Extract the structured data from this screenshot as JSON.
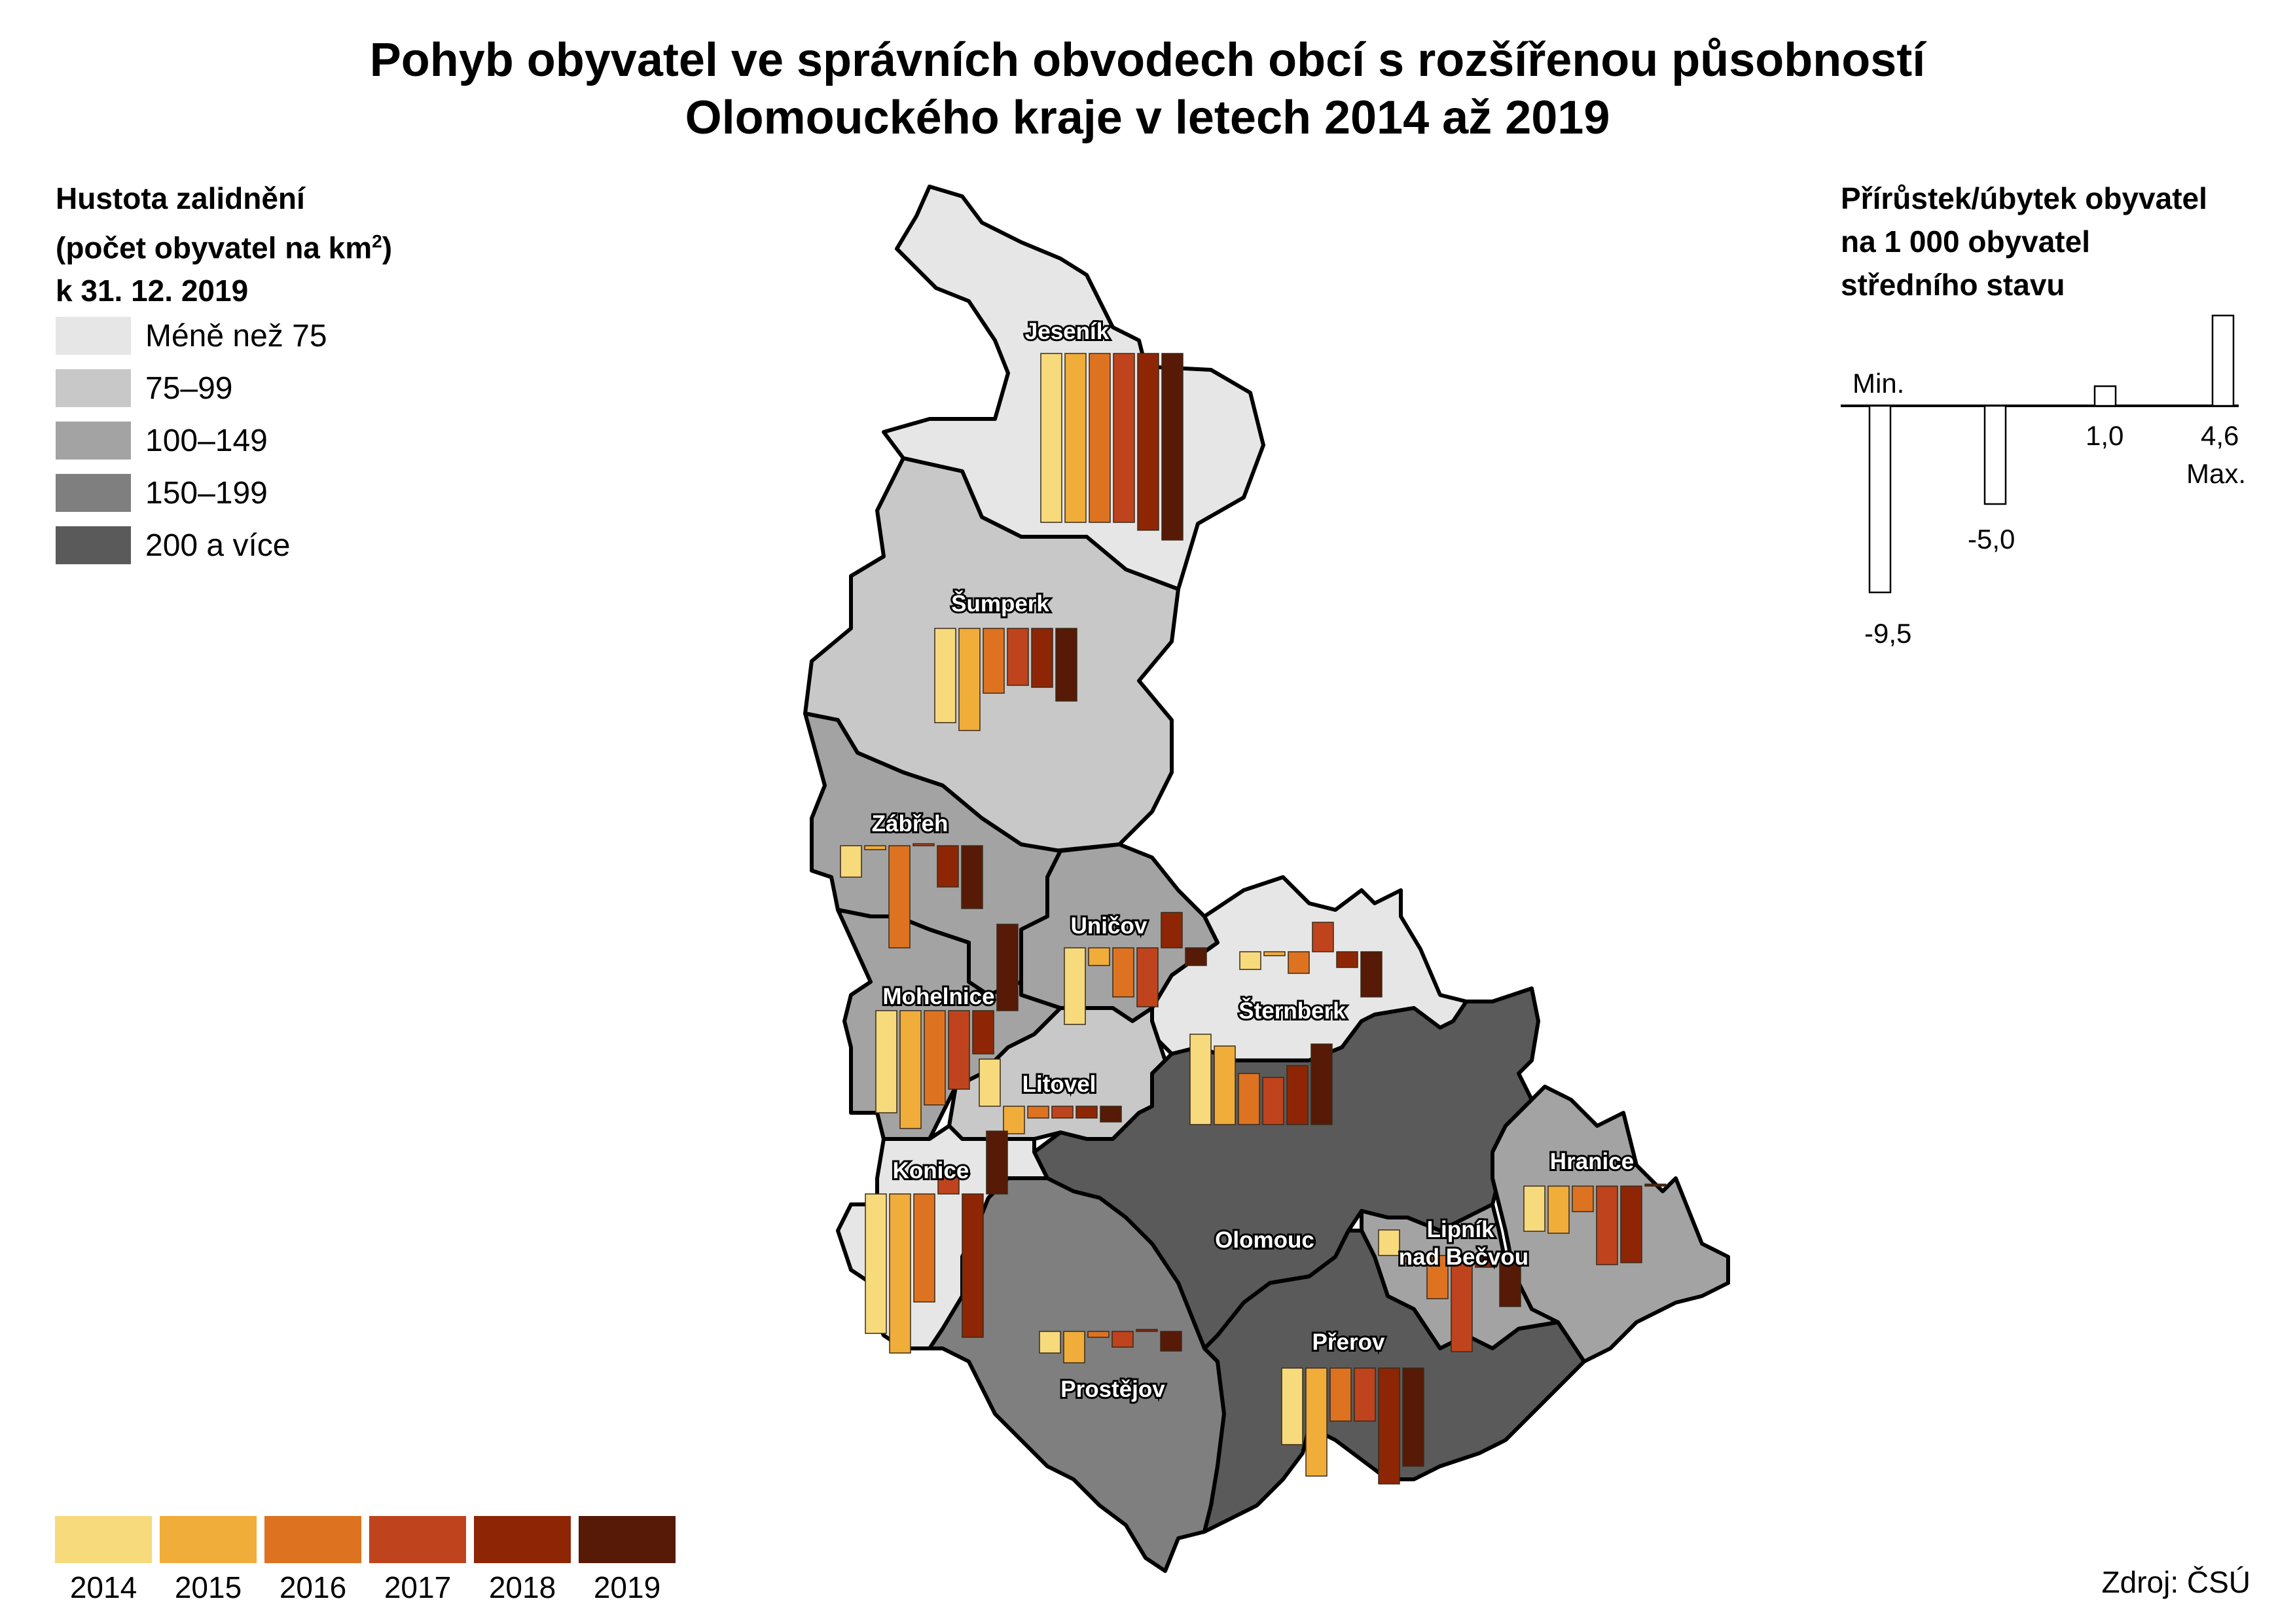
{
  "title": {
    "line1": "Pohyb obyvatel ve správních obvodech obcí s rozšířenou působností",
    "line2": "Olomouckého kraje v letech 2014 až 2019"
  },
  "density_legend": {
    "line1": "Hustota zalidnění",
    "line2_main": "(počet obyvatel na km",
    "line2_sup": "2",
    "line2_end": ")",
    "line3": "k 31. 12. 2019",
    "classes": [
      {
        "label": "Méně než 75",
        "color": "#e6e6e6"
      },
      {
        "label": "75–99",
        "color": "#c8c8c8"
      },
      {
        "label": "100–149",
        "color": "#a3a3a3"
      },
      {
        "label": "150–199",
        "color": "#7f7f7f"
      },
      {
        "label": "200 a více",
        "color": "#5a5a5a"
      }
    ]
  },
  "change_legend": {
    "line1": "Přírůstek/úbytek obyvatel",
    "line2": "na 1 000 obyvatel",
    "line3": "středního stavu",
    "min_label": "Min.",
    "max_label": "Max.",
    "scale_values": [
      {
        "value": -9.5,
        "label": "-9,5"
      },
      {
        "value": -5.0,
        "label": "-5,0"
      },
      {
        "value": 1.0,
        "label": "1,0"
      },
      {
        "value": 4.6,
        "label": "4,6"
      }
    ]
  },
  "years": [
    {
      "label": "2014",
      "color": "#f7da7c"
    },
    {
      "label": "2015",
      "color": "#f0ad3a"
    },
    {
      "label": "2016",
      "color": "#dd7320"
    },
    {
      "label": "2017",
      "color": "#bf431c"
    },
    {
      "label": "2018",
      "color": "#8e2606"
    },
    {
      "label": "2019",
      "color": "#561a07"
    }
  ],
  "source": "Zdroj: ČSÚ",
  "regions": [
    {
      "id": "jesenik",
      "name": "Jeseník",
      "density_class": 0,
      "values": [
        -8.6,
        -8.6,
        -8.6,
        -8.6,
        -9.0,
        -9.5
      ]
    },
    {
      "id": "sumperk",
      "name": "Šumperk",
      "density_class": 1,
      "values": [
        -4.8,
        -5.2,
        -3.3,
        -2.9,
        -3.0,
        -3.7
      ]
    },
    {
      "id": "zabreh",
      "name": "Zábřeh",
      "density_class": 2,
      "values": [
        -1.6,
        -0.2,
        -5.2,
        0.1,
        -2.1,
        -3.2
      ]
    },
    {
      "id": "unicov",
      "name": "Uničov",
      "density_class": 2,
      "values": [
        -3.9,
        -0.9,
        -2.5,
        -3.0,
        1.8,
        -0.9
      ]
    },
    {
      "id": "sternberk",
      "name": "Šternberk",
      "density_class": 0,
      "values": [
        -0.9,
        -0.2,
        -1.1,
        1.5,
        -0.8,
        -2.3
      ]
    },
    {
      "id": "mohelnice",
      "name": "Mohelnice",
      "density_class": 2,
      "values": [
        -5.2,
        -6.0,
        -4.8,
        -4.0,
        -2.2,
        4.4
      ]
    },
    {
      "id": "litovel",
      "name": "Litovel",
      "density_class": 1,
      "values": [
        2.4,
        -1.4,
        -0.6,
        -0.6,
        -0.6,
        -0.8
      ]
    },
    {
      "id": "olomouc",
      "name": "Olomouc",
      "density_class": 4,
      "values": [
        4.6,
        4.0,
        2.6,
        2.4,
        3.0,
        4.1
      ]
    },
    {
      "id": "hranice",
      "name": "Hranice",
      "density_class": 2,
      "values": [
        -2.3,
        -2.4,
        -1.3,
        -4.0,
        -3.9,
        0.1
      ]
    },
    {
      "id": "konice",
      "name": "Konice",
      "density_class": 0,
      "values": [
        -7.1,
        -8.1,
        -5.5,
        1.0,
        -7.3,
        3.2
      ]
    },
    {
      "id": "lipnik",
      "name": "Lipník nad Bečvou",
      "density_class": 2,
      "values": [
        1.3,
        -0.4,
        -2.2,
        -4.9,
        -0.6,
        -2.6
      ]
    },
    {
      "id": "prostejov",
      "name": "Prostějov",
      "density_class": 3,
      "values": [
        -1.1,
        -1.6,
        -0.3,
        -0.8,
        0.0,
        -1.0
      ]
    },
    {
      "id": "prerov",
      "name": "Přerov",
      "density_class": 4,
      "values": [
        -3.9,
        -5.5,
        -2.7,
        -2.7,
        -5.9,
        -5.0
      ]
    }
  ]
}
